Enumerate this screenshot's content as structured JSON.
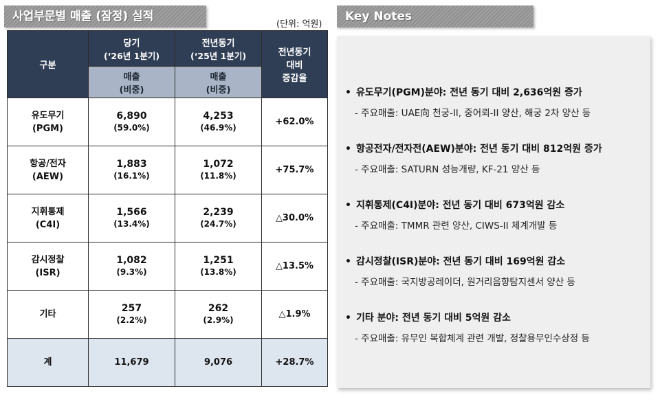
{
  "left_title": "사업부문별 매출 (잠정) 실적",
  "unit": "(단위: 억원)",
  "table": {
    "header_category": "구분",
    "col_current": {
      "line1": "당기",
      "line2": "(‘26년 1분기)",
      "sub1": "매출",
      "sub2": "(비중)"
    },
    "col_prior": {
      "line1": "전년동기",
      "line2": "(‘25년 1분기)",
      "sub1": "매출",
      "sub2": "(비중)"
    },
    "col_change": {
      "line1": "전년동기",
      "line2": "대비",
      "line3": "증감율"
    },
    "rows": [
      {
        "name1": "유도무기",
        "name2": "(PGM)",
        "cur": "6,890",
        "cur_pct": "(59.0%)",
        "prior": "4,253",
        "prior_pct": "(46.9%)",
        "change": "+62.0%"
      },
      {
        "name1": "항공/전자",
        "name2": "(AEW)",
        "cur": "1,883",
        "cur_pct": "(16.1%)",
        "prior": "1,072",
        "prior_pct": "(11.8%)",
        "change": "+75.7%"
      },
      {
        "name1": "지휘통제",
        "name2": "(C4I)",
        "cur": "1,566",
        "cur_pct": "(13.4%)",
        "prior": "2,239",
        "prior_pct": "(24.7%)",
        "change": "△30.0%"
      },
      {
        "name1": "감시정찰",
        "name2": "(ISR)",
        "cur": "1,082",
        "cur_pct": "(9.3%)",
        "prior": "1,251",
        "prior_pct": "(13.8%)",
        "change": "△13.5%"
      },
      {
        "name1": "기타",
        "name2": "",
        "cur": "257",
        "cur_pct": "(2.2%)",
        "prior": "262",
        "prior_pct": "(2.9%)",
        "change": "△1.9%"
      }
    ],
    "total": {
      "name": "계",
      "cur": "11,679",
      "prior": "9,076",
      "change": "+28.7%"
    }
  },
  "right_title": "Key Notes",
  "notes": [
    {
      "bullet": "•",
      "title": "유도무기(PGM)분야: 전년 동기 대비 2,636억원 증가",
      "detail": "- 주요매출: UAE向 천궁-II, 중어뢰-II 양산, 해궁 2차 양산 등"
    },
    {
      "bullet": "•",
      "title": "항공전자/전자전(AEW)분야: 전년 동기 대비 812억원 증가",
      "detail": "- 주요매출: SATURN 성능개량, KF-21 양산 등"
    },
    {
      "bullet": "•",
      "title": "지휘통제(C4I)분야: 전년 동기 대비 673억원 감소",
      "detail": "- 주요매출: TMMR 관련 양산, CIWS-II 체계개발 등"
    },
    {
      "bullet": "•",
      "title": "감시정찰(ISR)분야: 전년 동기 대비 169억원 감소",
      "detail": "- 주요매출: 국지방공레이더, 원거리음향탐지센서 양산 등"
    },
    {
      "bullet": "•",
      "title": "기타 분야: 전년 동기 대비 5억원 감소",
      "detail": "- 주요매출: 유무인 복합체계 관련 개발, 정찰용무인수상정 등"
    }
  ]
}
